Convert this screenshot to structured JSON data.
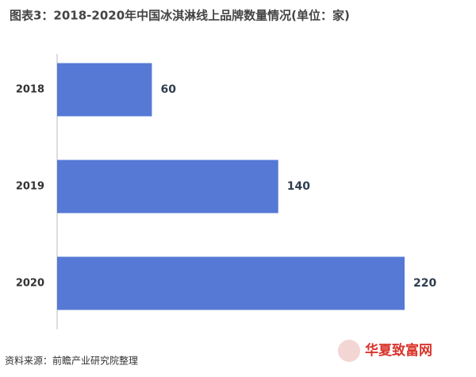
{
  "chart_data": {
    "type": "bar",
    "orientation": "horizontal",
    "title": "图表3：2018-2020年中国冰淇淋线上品牌数量情况(单位：家)",
    "categories": [
      "2018",
      "2019",
      "2020"
    ],
    "values": [
      60,
      140,
      220
    ],
    "color": "#5579d4",
    "source": "资料来源：前瞻产业研究院整理",
    "logo": "华夏致富网"
  }
}
